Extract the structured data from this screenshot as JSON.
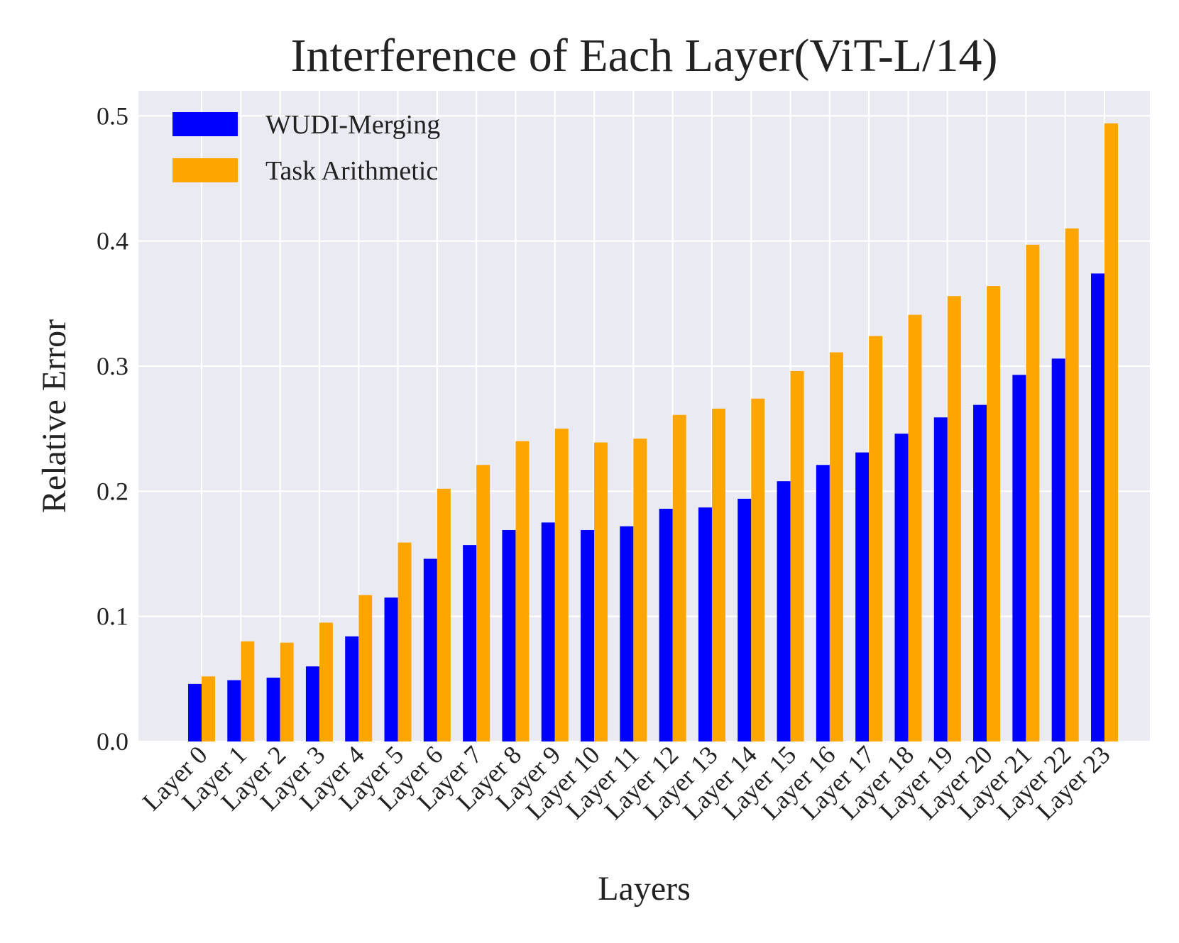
{
  "chart_data": {
    "type": "bar",
    "title": "Interference of Each Layer(ViT-L/14)",
    "xlabel": "Layers",
    "ylabel": "Relative Error",
    "ylim": [
      0,
      0.52
    ],
    "yticks": [
      "0.0",
      "0.1",
      "0.2",
      "0.3",
      "0.4",
      "0.5"
    ],
    "grid": true,
    "legend_position": "top-left",
    "categories": [
      "Layer 0",
      "Layer 1",
      "Layer 2",
      "Layer 3",
      "Layer 4",
      "Layer 5",
      "Layer 6",
      "Layer 7",
      "Layer 8",
      "Layer 9",
      "Layer 10",
      "Layer 11",
      "Layer 12",
      "Layer 13",
      "Layer 14",
      "Layer 15",
      "Layer 16",
      "Layer 17",
      "Layer 18",
      "Layer 19",
      "Layer 20",
      "Layer 21",
      "Layer 22",
      "Layer 23"
    ],
    "series": [
      {
        "name": "WUDI-Merging",
        "color": "#0000ff",
        "values": [
          0.046,
          0.049,
          0.051,
          0.06,
          0.084,
          0.115,
          0.146,
          0.157,
          0.169,
          0.175,
          0.169,
          0.172,
          0.186,
          0.187,
          0.194,
          0.208,
          0.221,
          0.231,
          0.246,
          0.259,
          0.269,
          0.293,
          0.306,
          0.374
        ]
      },
      {
        "name": "Task Arithmetic",
        "color": "#ffa500",
        "values": [
          0.052,
          0.08,
          0.079,
          0.095,
          0.117,
          0.159,
          0.202,
          0.221,
          0.24,
          0.25,
          0.239,
          0.242,
          0.261,
          0.266,
          0.274,
          0.296,
          0.311,
          0.324,
          0.341,
          0.356,
          0.364,
          0.397,
          0.41,
          0.494
        ]
      }
    ],
    "style": {
      "plot_background": "#eaeaf2",
      "grid_color": "#ffffff"
    }
  }
}
